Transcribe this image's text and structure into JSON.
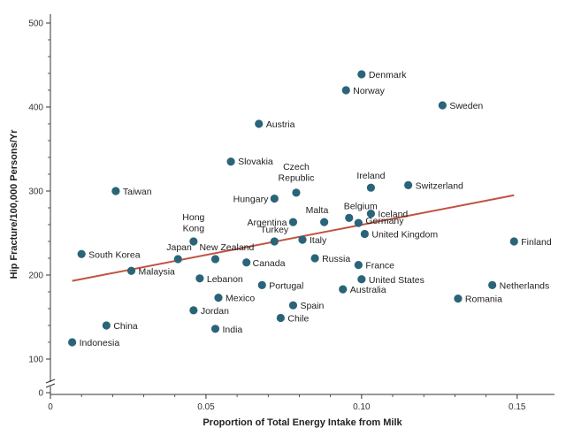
{
  "chart_data": {
    "type": "scatter",
    "xlabel": "Proportion of Total Energy Intake from Milk",
    "ylabel": "Hip Fracture/100,000 Persons/Yr",
    "xlim": [
      0,
      0.162
    ],
    "ylim": [
      0,
      520
    ],
    "axis_break": true,
    "x_ticks": [
      {
        "value": 0,
        "label": "0"
      },
      {
        "value": 0.05,
        "label": "0.05"
      },
      {
        "value": 0.1,
        "label": "0.10"
      },
      {
        "value": 0.15,
        "label": "0.15"
      }
    ],
    "y_ticks": [
      {
        "value": 0,
        "label": "0"
      },
      {
        "value": 100,
        "label": "100"
      },
      {
        "value": 200,
        "label": "200"
      },
      {
        "value": 300,
        "label": "300"
      },
      {
        "value": 400,
        "label": "400"
      },
      {
        "value": 500,
        "label": "500"
      }
    ],
    "trendline": {
      "x1": 0.007,
      "y1": 193,
      "x2": 0.149,
      "y2": 295
    },
    "colors": {
      "point": "#2a6478",
      "trendline": "#c0533f",
      "axis": "#333333"
    },
    "points": [
      {
        "label": "Denmark",
        "x": 0.1,
        "y": 439,
        "lx": 8,
        "ly": 4
      },
      {
        "label": "Norway",
        "x": 0.095,
        "y": 420,
        "lx": 8,
        "ly": 4
      },
      {
        "label": "Sweden",
        "x": 0.126,
        "y": 402,
        "lx": 8,
        "ly": 4
      },
      {
        "label": "Austria",
        "x": 0.067,
        "y": 380,
        "lx": 8,
        "ly": 4
      },
      {
        "label": "Slovakia",
        "x": 0.058,
        "y": 335,
        "lx": 8,
        "ly": 3
      },
      {
        "label": "Taiwan",
        "x": 0.021,
        "y": 300,
        "lx": 8,
        "ly": 4
      },
      {
        "label": "Czech|Republic",
        "x": 0.079,
        "y": 298,
        "lx": 0,
        "ly": -26,
        "anchor": "middle"
      },
      {
        "label": "Hungary",
        "x": 0.072,
        "y": 291,
        "lx": -7,
        "ly": 4,
        "anchor": "end"
      },
      {
        "label": "Ireland",
        "x": 0.103,
        "y": 304,
        "lx": 0,
        "ly": -10,
        "anchor": "middle"
      },
      {
        "label": "Switzerland",
        "x": 0.115,
        "y": 307,
        "lx": 8,
        "ly": 4
      },
      {
        "label": "Malta",
        "x": 0.088,
        "y": 263,
        "lx": -21,
        "ly": -10
      },
      {
        "label": "Belgium",
        "x": 0.096,
        "y": 268,
        "lx": -6,
        "ly": -10
      },
      {
        "label": "Iceland",
        "x": 0.103,
        "y": 273,
        "lx": 8,
        "ly": 4
      },
      {
        "label": "Germany",
        "x": 0.099,
        "y": 262,
        "lx": 8,
        "ly": 1
      },
      {
        "label": "Argentina",
        "x": 0.078,
        "y": 263,
        "lx": -7,
        "ly": 4,
        "anchor": "end"
      },
      {
        "label": "United Kingdom",
        "x": 0.101,
        "y": 249,
        "lx": 8,
        "ly": 4
      },
      {
        "label": "Hong|Kong",
        "x": 0.046,
        "y": 240,
        "lx": 0,
        "ly": -24,
        "anchor": "middle"
      },
      {
        "label": "Turkey",
        "x": 0.072,
        "y": 240,
        "lx": 0,
        "ly": -10,
        "anchor": "middle"
      },
      {
        "label": "Italy",
        "x": 0.081,
        "y": 242,
        "lx": 8,
        "ly": 4
      },
      {
        "label": "Finland",
        "x": 0.149,
        "y": 240,
        "lx": 8,
        "ly": 4
      },
      {
        "label": "South Korea",
        "x": 0.01,
        "y": 225,
        "lx": 8,
        "ly": 4
      },
      {
        "label": "Japan",
        "x": 0.041,
        "y": 219,
        "lx": -13,
        "ly": -10
      },
      {
        "label": "New Zealand",
        "x": 0.053,
        "y": 219,
        "lx": -18,
        "ly": -10
      },
      {
        "label": "Canada",
        "x": 0.063,
        "y": 215,
        "lx": 7,
        "ly": 4
      },
      {
        "label": "Russia",
        "x": 0.085,
        "y": 220,
        "lx": 8,
        "ly": 4
      },
      {
        "label": "France",
        "x": 0.099,
        "y": 212,
        "lx": 8,
        "ly": 4
      },
      {
        "label": "Malaysia",
        "x": 0.026,
        "y": 205,
        "lx": 8,
        "ly": 4
      },
      {
        "label": "Lebanon",
        "x": 0.048,
        "y": 196,
        "lx": 8,
        "ly": 4
      },
      {
        "label": "United States",
        "x": 0.1,
        "y": 195,
        "lx": 8,
        "ly": 4
      },
      {
        "label": "Portugal",
        "x": 0.068,
        "y": 188,
        "lx": 8,
        "ly": 4
      },
      {
        "label": "Netherlands",
        "x": 0.142,
        "y": 188,
        "lx": 8,
        "ly": 4
      },
      {
        "label": "Australia",
        "x": 0.094,
        "y": 183,
        "lx": 8,
        "ly": 4
      },
      {
        "label": "Mexico",
        "x": 0.054,
        "y": 173,
        "lx": 8,
        "ly": 4
      },
      {
        "label": "Romania",
        "x": 0.131,
        "y": 172,
        "lx": 8,
        "ly": 4
      },
      {
        "label": "Spain",
        "x": 0.078,
        "y": 164,
        "lx": 8,
        "ly": 4
      },
      {
        "label": "Jordan",
        "x": 0.046,
        "y": 158,
        "lx": 8,
        "ly": 4
      },
      {
        "label": "Chile",
        "x": 0.074,
        "y": 149,
        "lx": 8,
        "ly": 4
      },
      {
        "label": "China",
        "x": 0.018,
        "y": 140,
        "lx": 8,
        "ly": 4
      },
      {
        "label": "India",
        "x": 0.053,
        "y": 136,
        "lx": 8,
        "ly": 4
      },
      {
        "label": "Indonesia",
        "x": 0.007,
        "y": 120,
        "lx": 8,
        "ly": 4
      }
    ]
  }
}
